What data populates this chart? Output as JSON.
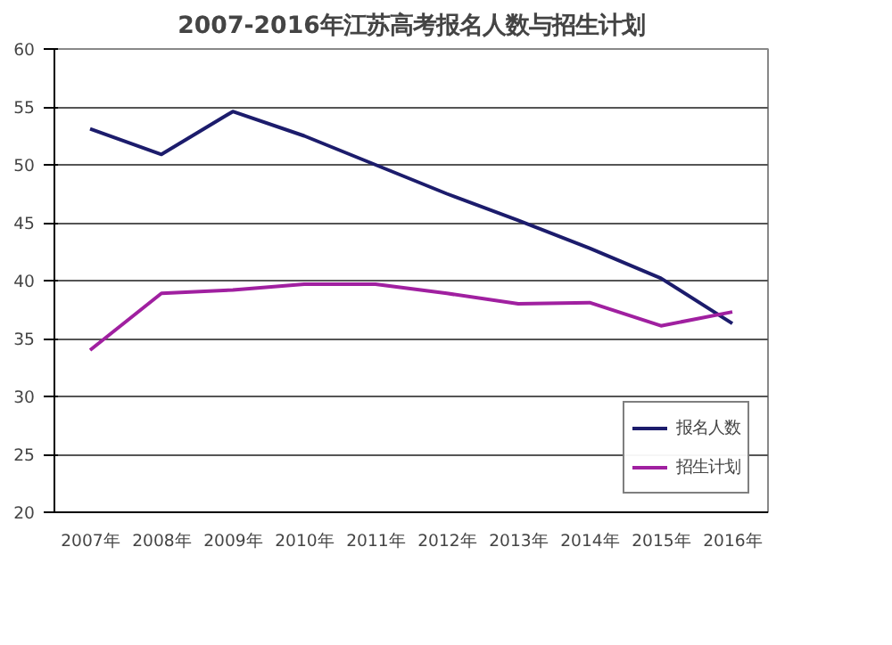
{
  "chart_data": {
    "type": "line",
    "title": "2007-2016年江苏高考报名人数与招生计划",
    "categories": [
      "2007年",
      "2008年",
      "2009年",
      "2010年",
      "2011年",
      "2012年",
      "2013年",
      "2014年",
      "2015年",
      "2016年"
    ],
    "series": [
      {
        "name": "报名人数",
        "color": "#1c1c6c",
        "values": [
          53.1,
          50.9,
          54.6,
          52.5,
          50.0,
          47.5,
          45.2,
          42.8,
          40.2,
          36.3
        ]
      },
      {
        "name": "招生计划",
        "color": "#a020a0",
        "values": [
          34.0,
          38.9,
          39.2,
          39.7,
          39.7,
          38.9,
          38.0,
          38.1,
          36.1,
          37.3
        ]
      }
    ],
    "ylim": [
      20,
      60
    ],
    "yticks": [
      20,
      25,
      30,
      35,
      40,
      45,
      50,
      55,
      60
    ],
    "grid": "y",
    "legend": "bottom right",
    "marker": "none",
    "line_style": "solid"
  }
}
